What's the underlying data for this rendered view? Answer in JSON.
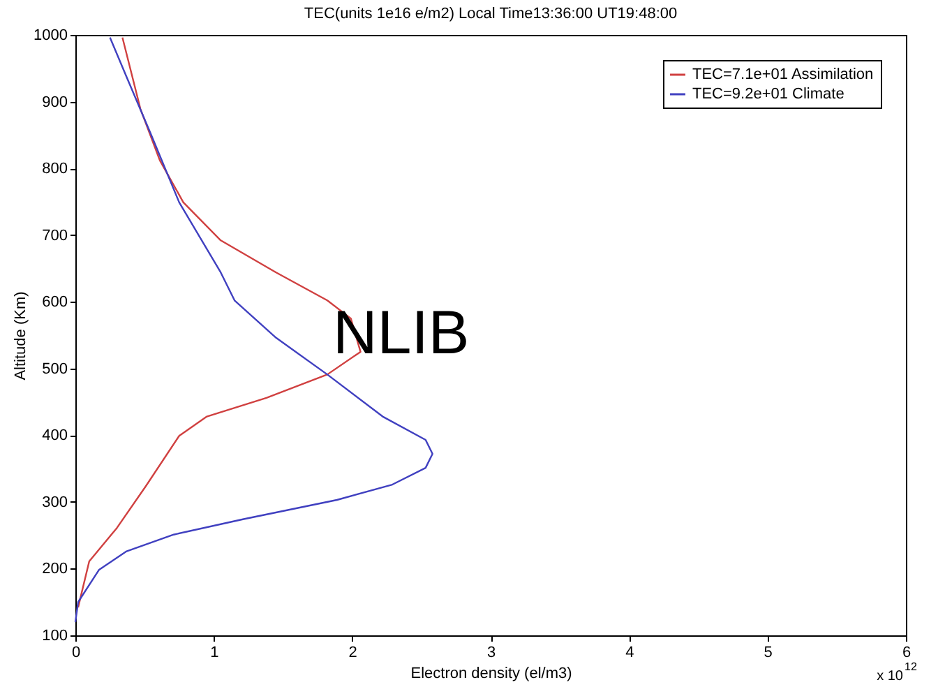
{
  "chart_data": {
    "type": "line",
    "title": "TEC(units 1e16 e/m2)  Local Time13:36:00   UT19:48:00",
    "xlabel": "Electron density (el/m3)",
    "ylabel": "Altitude (Km)",
    "xlim": [
      0,
      6
    ],
    "xticks": [
      0,
      1,
      2,
      3,
      4,
      5,
      6
    ],
    "ylim": [
      100,
      1000
    ],
    "yticks": [
      100,
      200,
      300,
      400,
      500,
      600,
      700,
      800,
      900,
      1000
    ],
    "grid": false,
    "legend": "top right",
    "marker": "none",
    "line_style": "solid",
    "series": [
      {
        "name": "TEC=7.1e+01 Assimilation",
        "color": "#d04040",
        "x": [
          0.02,
          0.1,
          0.3,
          0.51,
          0.75,
          0.95,
          1.38,
          1.82,
          2.06,
          1.99,
          1.82,
          1.45,
          1.05,
          0.78,
          0.61,
          0.47,
          0.34
        ],
        "values": [
          142,
          211,
          261,
          324,
          399,
          428,
          456,
          491,
          525,
          575,
          602,
          644,
          692,
          749,
          812,
          889,
          996
        ]
      },
      {
        "name": "TEC=9.2e+01 Climate",
        "color": "#4040c0",
        "x": [
          0.0,
          0.02,
          0.17,
          0.37,
          0.71,
          1.21,
          1.89,
          2.29,
          2.53,
          2.58,
          2.53,
          2.22,
          1.82,
          1.45,
          1.15,
          1.05,
          0.75,
          0.54,
          0.37,
          0.25
        ],
        "values": [
          120,
          150,
          198,
          226,
          251,
          274,
          303,
          326,
          351,
          372,
          393,
          428,
          491,
          546,
          602,
          644,
          749,
          854,
          937,
          996
        ]
      }
    ],
    "annotations": [
      "NLIB",
      "x 10$^{12}$"
    ]
  }
}
